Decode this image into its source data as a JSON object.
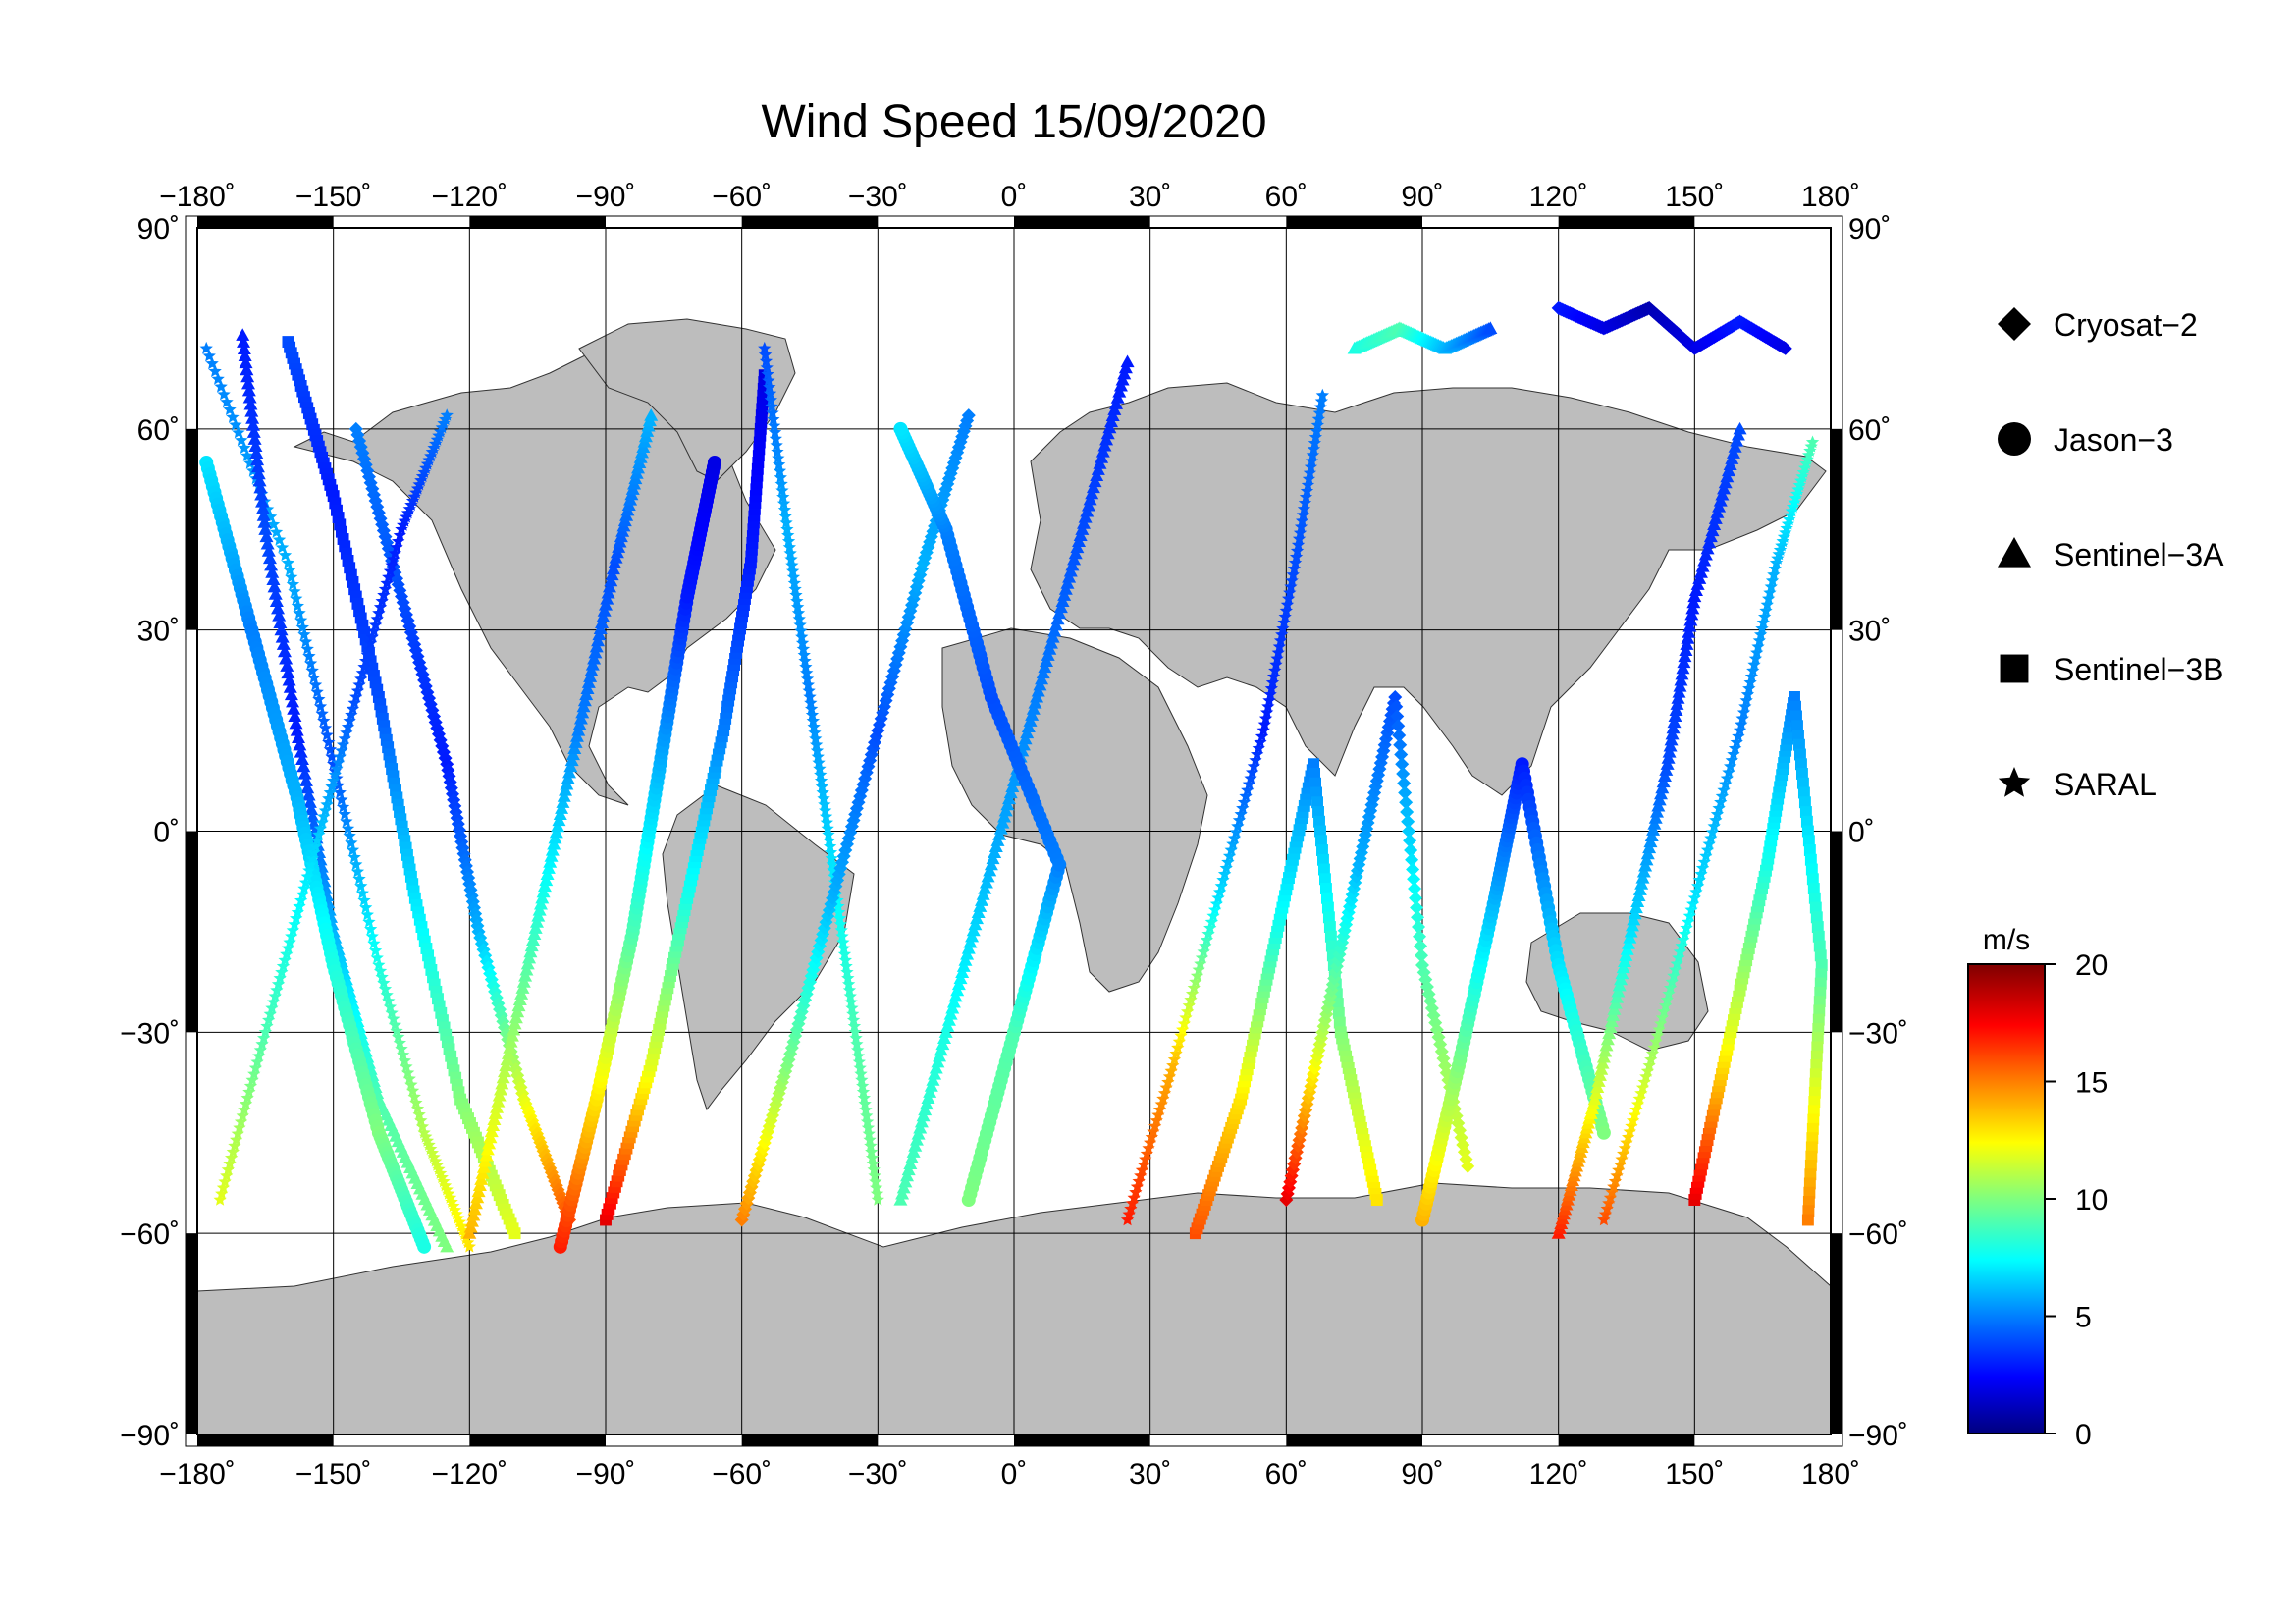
{
  "title": "Wind Speed 15/09/2020",
  "map": {
    "lon_range": [
      -180,
      180
    ],
    "lat_range": [
      -90,
      90
    ],
    "land_color": "#bdbdbd",
    "ocean_color": "#ffffff",
    "grid_lon": [
      -180,
      -150,
      -120,
      -90,
      -60,
      -30,
      0,
      30,
      60,
      90,
      120,
      150,
      180
    ],
    "grid_lat": [
      -90,
      -60,
      -30,
      0,
      30,
      60,
      90
    ],
    "lon_tick_labels": [
      "−180˚",
      "−150˚",
      "−120˚",
      "−90˚",
      "−60˚",
      "−30˚",
      "0˚",
      "30˚",
      "60˚",
      "90˚",
      "120˚",
      "150˚",
      "180˚"
    ],
    "lat_tick_labels": [
      "−90˚",
      "−60˚",
      "−30˚",
      "0˚",
      "30˚",
      "60˚",
      "90˚"
    ]
  },
  "legend": {
    "items": [
      {
        "label": "Cryosat−2",
        "marker": "diamond"
      },
      {
        "label": "Jason−3",
        "marker": "circle"
      },
      {
        "label": "Sentinel−3A",
        "marker": "triangle"
      },
      {
        "label": "Sentinel−3B",
        "marker": "square"
      },
      {
        "label": "SARAL",
        "marker": "star"
      }
    ]
  },
  "colorbar": {
    "unit": "m/s",
    "range": [
      0,
      20
    ],
    "ticks": [
      "20",
      "15",
      "10",
      "5",
      "0"
    ],
    "tick_values": [
      20,
      15,
      10,
      5,
      0
    ],
    "colors": [
      "#00007f",
      "#0000ff",
      "#007fff",
      "#00ffff",
      "#7fff7f",
      "#ffff00",
      "#ff7f00",
      "#ff0000",
      "#7f0000"
    ]
  },
  "chart_data": {
    "type": "scatter",
    "title": "Wind Speed 15/09/2020",
    "xlabel": "",
    "ylabel": "",
    "xlim": [
      -180,
      180
    ],
    "ylim": [
      -90,
      90
    ],
    "color_scale": "m/s",
    "clim": [
      0,
      20
    ],
    "grid": true,
    "legend_position": "right",
    "tracks": [
      {
        "series": "SARAL",
        "points": [
          [
            -178,
            72,
            5
          ],
          [
            -160,
            40,
            6
          ],
          [
            -150,
            10,
            4
          ],
          [
            -140,
            -20,
            8
          ],
          [
            -130,
            -45,
            11
          ],
          [
            -120,
            -62,
            13
          ]
        ]
      },
      {
        "series": "Sentinel-3A",
        "points": [
          [
            -170,
            74,
            3
          ],
          [
            -165,
            45,
            4
          ],
          [
            -158,
            15,
            3
          ],
          [
            -150,
            -15,
            6
          ],
          [
            -140,
            -40,
            9
          ],
          [
            -125,
            -62,
            10
          ]
        ]
      },
      {
        "series": "Sentinel-3B",
        "points": [
          [
            -160,
            73,
            4
          ],
          [
            -150,
            50,
            3
          ],
          [
            -140,
            20,
            4
          ],
          [
            -132,
            -10,
            7
          ],
          [
            -122,
            -40,
            10
          ],
          [
            -110,
            -60,
            12
          ]
        ]
      },
      {
        "series": "Jason-3",
        "points": [
          [
            -178,
            55,
            7
          ],
          [
            -168,
            30,
            5
          ],
          [
            -158,
            5,
            6
          ],
          [
            -150,
            -20,
            8
          ],
          [
            -140,
            -45,
            10
          ],
          [
            -130,
            -62,
            8
          ]
        ]
      },
      {
        "series": "Cryosat-2",
        "points": [
          [
            -145,
            60,
            5
          ],
          [
            -135,
            35,
            4
          ],
          [
            -125,
            10,
            3
          ],
          [
            -118,
            -15,
            6
          ],
          [
            -108,
            -40,
            12
          ],
          [
            -98,
            -58,
            16
          ]
        ]
      },
      {
        "series": "SARAL",
        "points": [
          [
            -175,
            -55,
            12
          ],
          [
            -165,
            -30,
            9
          ],
          [
            -155,
            -5,
            7
          ],
          [
            -145,
            20,
            4
          ],
          [
            -135,
            45,
            3
          ],
          [
            -125,
            62,
            5
          ]
        ]
      },
      {
        "series": "Sentinel-3A",
        "points": [
          [
            -120,
            -60,
            14
          ],
          [
            -112,
            -35,
            11
          ],
          [
            -104,
            -10,
            8
          ],
          [
            -96,
            15,
            5
          ],
          [
            -88,
            40,
            4
          ],
          [
            -80,
            62,
            6
          ]
        ]
      },
      {
        "series": "Jason-3",
        "points": [
          [
            -100,
            -62,
            17
          ],
          [
            -92,
            -40,
            13
          ],
          [
            -84,
            -15,
            9
          ],
          [
            -78,
            10,
            6
          ],
          [
            -72,
            35,
            3
          ],
          [
            -66,
            55,
            2
          ]
        ]
      },
      {
        "series": "Sentinel-3B",
        "points": [
          [
            -90,
            -58,
            18
          ],
          [
            -80,
            -35,
            12
          ],
          [
            -72,
            -10,
            8
          ],
          [
            -64,
            15,
            5
          ],
          [
            -58,
            40,
            3
          ],
          [
            -55,
            68,
            2
          ]
        ]
      },
      {
        "series": "SARAL",
        "points": [
          [
            -55,
            72,
            4
          ],
          [
            -50,
            45,
            6
          ],
          [
            -45,
            20,
            5
          ],
          [
            -40,
            -5,
            7
          ],
          [
            -35,
            -30,
            9
          ],
          [
            -30,
            -55,
            10
          ]
        ]
      },
      {
        "series": "Cryosat-2",
        "points": [
          [
            -60,
            -58,
            15
          ],
          [
            -50,
            -35,
            10
          ],
          [
            -40,
            -10,
            6
          ],
          [
            -30,
            15,
            4
          ],
          [
            -20,
            40,
            6
          ],
          [
            -10,
            62,
            5
          ]
        ]
      },
      {
        "series": "Sentinel-3A",
        "points": [
          [
            -25,
            -55,
            9
          ],
          [
            -15,
            -30,
            8
          ],
          [
            -5,
            -5,
            6
          ],
          [
            5,
            20,
            5
          ],
          [
            15,
            45,
            4
          ],
          [
            25,
            70,
            3
          ]
        ]
      },
      {
        "series": "Jason-3",
        "points": [
          [
            -10,
            -55,
            10
          ],
          [
            0,
            -30,
            9
          ],
          [
            10,
            -5,
            5
          ],
          [
            -5,
            20,
            4
          ],
          [
            -15,
            45,
            5
          ],
          [
            -25,
            60,
            7
          ]
        ]
      },
      {
        "series": "SARAL",
        "points": [
          [
            25,
            -58,
            17
          ],
          [
            35,
            -35,
            14
          ],
          [
            45,
            -10,
            7
          ],
          [
            55,
            15,
            3
          ],
          [
            62,
            40,
            4
          ],
          [
            68,
            65,
            5
          ]
        ]
      },
      {
        "series": "Sentinel-3B",
        "points": [
          [
            40,
            -60,
            16
          ],
          [
            50,
            -40,
            13
          ],
          [
            58,
            -15,
            8
          ],
          [
            66,
            10,
            5
          ],
          [
            72,
            -30,
            10
          ],
          [
            80,
            -55,
            13
          ]
        ]
      },
      {
        "series": "Cryosat-2",
        "points": [
          [
            60,
            -55,
            18
          ],
          [
            68,
            -30,
            11
          ],
          [
            76,
            -5,
            6
          ],
          [
            84,
            20,
            4
          ],
          [
            90,
            -20,
            9
          ],
          [
            100,
            -50,
            12
          ]
        ]
      },
      {
        "series": "Jason-3",
        "points": [
          [
            90,
            -58,
            14
          ],
          [
            98,
            -35,
            10
          ],
          [
            106,
            -10,
            6
          ],
          [
            112,
            10,
            3
          ],
          [
            120,
            -20,
            7
          ],
          [
            130,
            -45,
            10
          ]
        ]
      },
      {
        "series": "Sentinel-3A",
        "points": [
          [
            120,
            -60,
            17
          ],
          [
            128,
            -40,
            12
          ],
          [
            136,
            -15,
            7
          ],
          [
            144,
            10,
            4
          ],
          [
            150,
            35,
            3
          ],
          [
            160,
            60,
            4
          ]
        ]
      },
      {
        "series": "SARAL",
        "points": [
          [
            130,
            -58,
            16
          ],
          [
            140,
            -35,
            11
          ],
          [
            150,
            -10,
            7
          ],
          [
            160,
            15,
            5
          ],
          [
            168,
            40,
            6
          ],
          [
            176,
            58,
            9
          ]
        ]
      },
      {
        "series": "Sentinel-3B",
        "points": [
          [
            150,
            -55,
            18
          ],
          [
            158,
            -30,
            12
          ],
          [
            166,
            -5,
            8
          ],
          [
            172,
            20,
            5
          ],
          [
            178,
            -20,
            9
          ],
          [
            175,
            -58,
            15
          ]
        ]
      },
      {
        "series": "Cryosat-2",
        "points": [
          [
            120,
            78,
            3
          ],
          [
            130,
            75,
            2
          ],
          [
            140,
            78,
            1
          ],
          [
            150,
            72,
            2
          ],
          [
            160,
            76,
            3
          ],
          [
            170,
            72,
            2
          ]
        ]
      },
      {
        "series": "Sentinel-3A",
        "points": [
          [
            75,
            72,
            8
          ],
          [
            85,
            75,
            9
          ],
          [
            95,
            72,
            6
          ],
          [
            105,
            75,
            4
          ]
        ]
      }
    ]
  }
}
